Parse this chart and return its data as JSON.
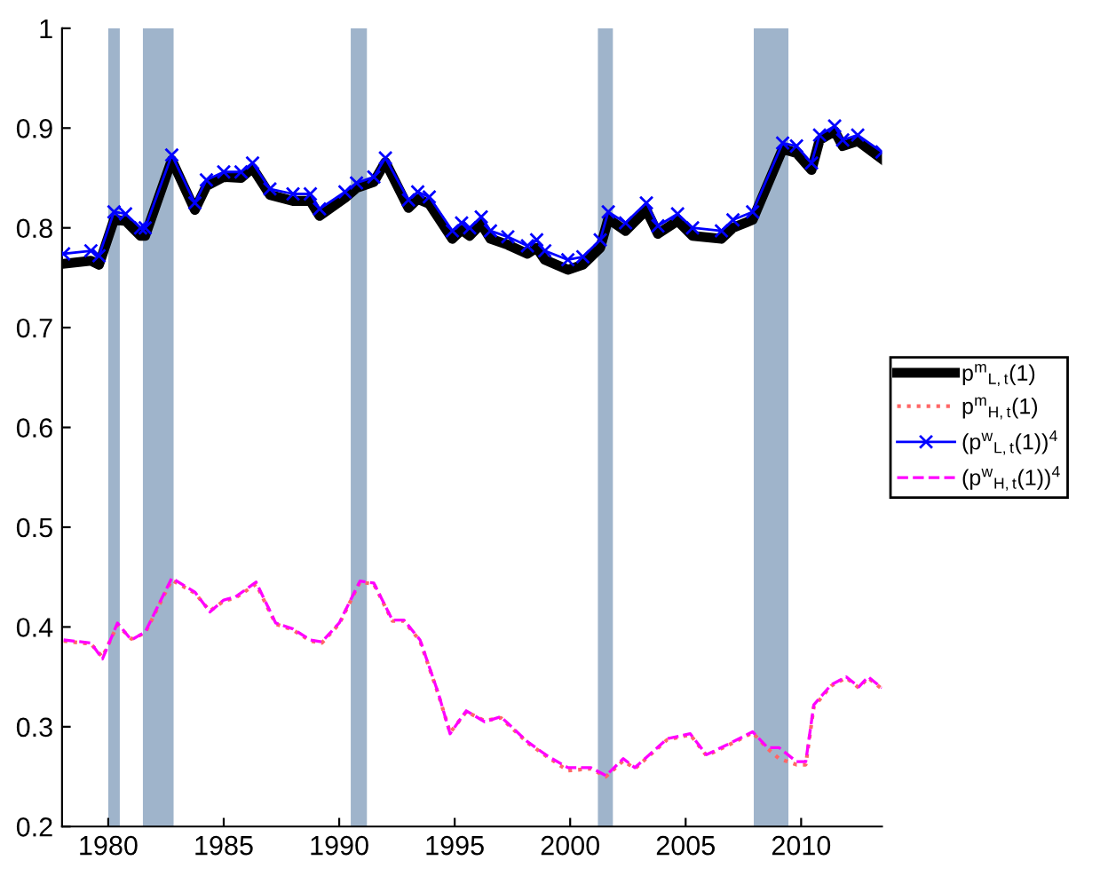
{
  "chart_data": {
    "type": "line",
    "xlim": [
      1978,
      2013.5
    ],
    "ylim": [
      0.2,
      1
    ],
    "xticks": [
      1980,
      1985,
      1990,
      1995,
      2000,
      2005,
      2010
    ],
    "yticks": [
      0.2,
      0.3,
      0.4,
      0.5,
      0.6,
      0.7,
      0.8,
      0.9,
      1
    ],
    "grid": false,
    "legend": "right",
    "bands": [
      {
        "axis": "x",
        "from": 1980.0,
        "to": 1980.5,
        "color": "#9fb4cb"
      },
      {
        "axis": "x",
        "from": 1981.5,
        "to": 1982.83,
        "color": "#9fb4cb"
      },
      {
        "axis": "x",
        "from": 1990.5,
        "to": 1991.2,
        "color": "#9fb4cb"
      },
      {
        "axis": "x",
        "from": 2001.2,
        "to": 2001.85,
        "color": "#9fb4cb"
      },
      {
        "axis": "x",
        "from": 2007.95,
        "to": 2009.45,
        "color": "#9fb4cb"
      }
    ],
    "series": [
      {
        "name": "p$^{m}$$_{L,t}$(1)",
        "color": "#000000",
        "line_style": "solid",
        "marker": "none",
        "x": [
          1978.07,
          1979.25,
          1979.6,
          1980.25,
          1980.75,
          1981.4,
          1981.6,
          1982.75,
          1983.75,
          1984.25,
          1985,
          1985.75,
          1986.25,
          1987,
          1988,
          1988.75,
          1989.15,
          1990.25,
          1990.75,
          1991.5,
          1992,
          1993,
          1993.4,
          1993.9,
          1994.9,
          1995.3,
          1995.65,
          1996.15,
          1996.55,
          1997.3,
          1998.15,
          1998.55,
          1998.9,
          1999.9,
          2000.55,
          2001.3,
          2001.65,
          2002.4,
          2003.3,
          2003.8,
          2004.65,
          2005.3,
          2006.55,
          2007.05,
          2007.9,
          2009.2,
          2009.8,
          2010.45,
          2010.8,
          2011.45,
          2011.8,
          2012.45,
          2013.5
        ],
        "values": [
          0.764,
          0.767,
          0.763,
          0.808,
          0.807,
          0.792,
          0.792,
          0.868,
          0.818,
          0.842,
          0.851,
          0.85,
          0.86,
          0.833,
          0.827,
          0.827,
          0.812,
          0.83,
          0.84,
          0.846,
          0.866,
          0.82,
          0.829,
          0.824,
          0.789,
          0.798,
          0.792,
          0.804,
          0.789,
          0.783,
          0.774,
          0.78,
          0.768,
          0.758,
          0.763,
          0.78,
          0.809,
          0.797,
          0.818,
          0.794,
          0.807,
          0.792,
          0.789,
          0.8,
          0.808,
          0.879,
          0.875,
          0.858,
          0.888,
          0.897,
          0.882,
          0.887,
          0.869
        ]
      },
      {
        "name": "p$^{m}$$_{H,t}$(1)",
        "color": "#ff6666",
        "line_style": "dotted",
        "marker": "none",
        "x": [
          1978.07,
          1979.25,
          1979.75,
          1980.4,
          1981,
          1981.6,
          1982.75,
          1983.75,
          1984.4,
          1985,
          1985.5,
          1986.4,
          1987.25,
          1988,
          1988.75,
          1989.25,
          1990,
          1990.9,
          1991.5,
          1992.3,
          1992.8,
          1993.5,
          1994.3,
          1994.8,
          1995.5,
          1996.3,
          1997,
          1998.15,
          1999,
          1999.9,
          2000.9,
          2001.55,
          2002.3,
          2002.8,
          2004.2,
          2005.2,
          2005.9,
          2006.8,
          2007.9,
          2008.55,
          2009.05,
          2009.8,
          2010.2,
          2010.55,
          2011.3,
          2011.95,
          2012.5,
          2012.9,
          2013.5
        ],
        "values": [
          0.386,
          0.383,
          0.37,
          0.402,
          0.388,
          0.394,
          0.447,
          0.434,
          0.416,
          0.426,
          0.429,
          0.443,
          0.403,
          0.397,
          0.386,
          0.384,
          0.403,
          0.445,
          0.443,
          0.406,
          0.406,
          0.386,
          0.332,
          0.294,
          0.315,
          0.306,
          0.309,
          0.284,
          0.27,
          0.256,
          0.258,
          0.25,
          0.266,
          0.258,
          0.287,
          0.292,
          0.271,
          0.281,
          0.294,
          0.278,
          0.268,
          0.262,
          0.262,
          0.32,
          0.341,
          0.349,
          0.339,
          0.349,
          0.338
        ]
      },
      {
        "name": "(p$^{w}$$_{L,t}$(1))$^{4}$",
        "color": "#0000ff",
        "line_style": "solid",
        "marker": "cross",
        "x": [
          1978.07,
          1979.25,
          1979.6,
          1980.25,
          1980.75,
          1981.4,
          1981.6,
          1982.75,
          1983.75,
          1984.25,
          1985,
          1985.75,
          1986.25,
          1987,
          1988,
          1988.75,
          1989.15,
          1990.25,
          1990.75,
          1991.5,
          1992,
          1993,
          1993.4,
          1993.9,
          1994.9,
          1995.3,
          1995.65,
          1996.15,
          1996.55,
          1997.3,
          1998.15,
          1998.55,
          1998.9,
          1999.9,
          2000.55,
          2001.3,
          2001.65,
          2002.4,
          2003.3,
          2003.8,
          2004.65,
          2005.3,
          2006.55,
          2007.05,
          2007.9,
          2009.2,
          2009.8,
          2010.45,
          2010.8,
          2011.45,
          2011.8,
          2012.45,
          2013.5
        ],
        "values": [
          0.774,
          0.777,
          0.772,
          0.816,
          0.814,
          0.8,
          0.8,
          0.873,
          0.825,
          0.848,
          0.856,
          0.856,
          0.865,
          0.839,
          0.834,
          0.834,
          0.819,
          0.836,
          0.845,
          0.851,
          0.87,
          0.828,
          0.836,
          0.831,
          0.797,
          0.805,
          0.8,
          0.811,
          0.797,
          0.791,
          0.782,
          0.788,
          0.777,
          0.768,
          0.771,
          0.788,
          0.816,
          0.805,
          0.825,
          0.802,
          0.814,
          0.8,
          0.797,
          0.808,
          0.816,
          0.885,
          0.882,
          0.865,
          0.893,
          0.902,
          0.888,
          0.893,
          0.876
        ]
      },
      {
        "name": "(p$^{w}$$_{H,t}$(1))$^{4}$",
        "color": "#ff00ff",
        "line_style": "dashed",
        "marker": "none",
        "x": [
          1978.07,
          1979.25,
          1979.75,
          1980.4,
          1981,
          1981.6,
          1982.75,
          1983.75,
          1984.4,
          1985,
          1985.5,
          1986.4,
          1987.25,
          1988,
          1988.75,
          1989.25,
          1990,
          1990.9,
          1991.5,
          1992.3,
          1992.8,
          1993.5,
          1994.3,
          1994.8,
          1995.5,
          1996.3,
          1997,
          1998.15,
          1999,
          1999.9,
          2000.9,
          2001.55,
          2002.3,
          2002.8,
          2004.2,
          2005.2,
          2005.9,
          2006.8,
          2007.9,
          2008.55,
          2009.05,
          2009.8,
          2010.2,
          2010.55,
          2011.3,
          2011.95,
          2012.5,
          2012.9,
          2013.5
        ],
        "values": [
          0.387,
          0.384,
          0.368,
          0.404,
          0.387,
          0.395,
          0.449,
          0.435,
          0.415,
          0.427,
          0.43,
          0.445,
          0.404,
          0.398,
          0.387,
          0.385,
          0.404,
          0.446,
          0.444,
          0.407,
          0.407,
          0.387,
          0.333,
          0.293,
          0.316,
          0.305,
          0.31,
          0.285,
          0.271,
          0.259,
          0.259,
          0.251,
          0.268,
          0.259,
          0.288,
          0.293,
          0.272,
          0.282,
          0.295,
          0.279,
          0.279,
          0.265,
          0.265,
          0.322,
          0.342,
          0.35,
          0.34,
          0.35,
          0.339
        ]
      }
    ]
  }
}
